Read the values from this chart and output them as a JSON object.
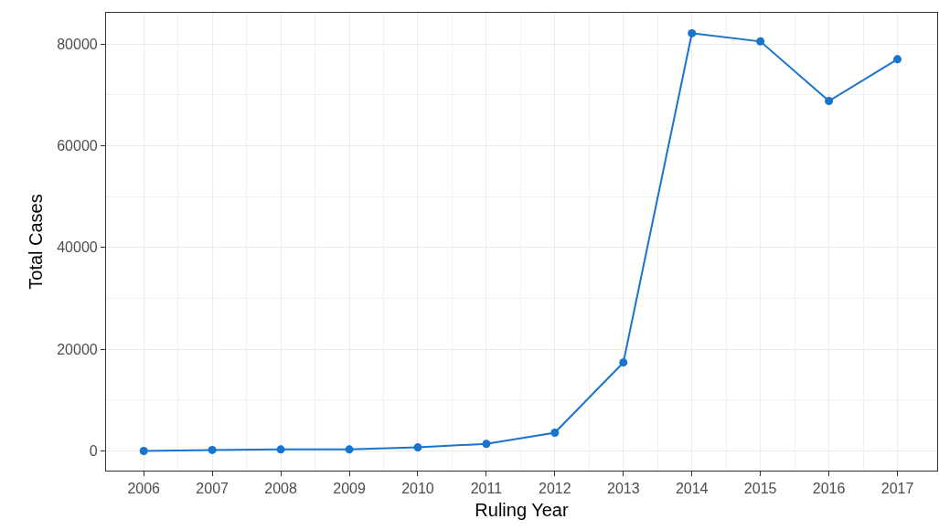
{
  "chart_data": {
    "type": "line",
    "xlabel": "Ruling Year",
    "ylabel": "Total Cases",
    "x": [
      2006,
      2007,
      2008,
      2009,
      2010,
      2011,
      2012,
      2013,
      2014,
      2015,
      2016,
      2017
    ],
    "series": [
      {
        "color": "#1874cd",
        "values": [
          0,
          200,
          300,
          300,
          700,
          1400,
          3600,
          17400,
          82100,
          80500,
          68800,
          77000
        ]
      }
    ],
    "xlim": [
      2005.45,
      2017.58
    ],
    "xticks": [
      2006,
      2007,
      2008,
      2009,
      2010,
      2011,
      2012,
      2013,
      2014,
      2015,
      2016,
      2017
    ],
    "ylim": [
      -3860,
      86130
    ],
    "yticks": [
      0,
      20000,
      40000,
      60000,
      80000
    ],
    "grid": true,
    "marker": "circle",
    "line_style": "solid"
  }
}
